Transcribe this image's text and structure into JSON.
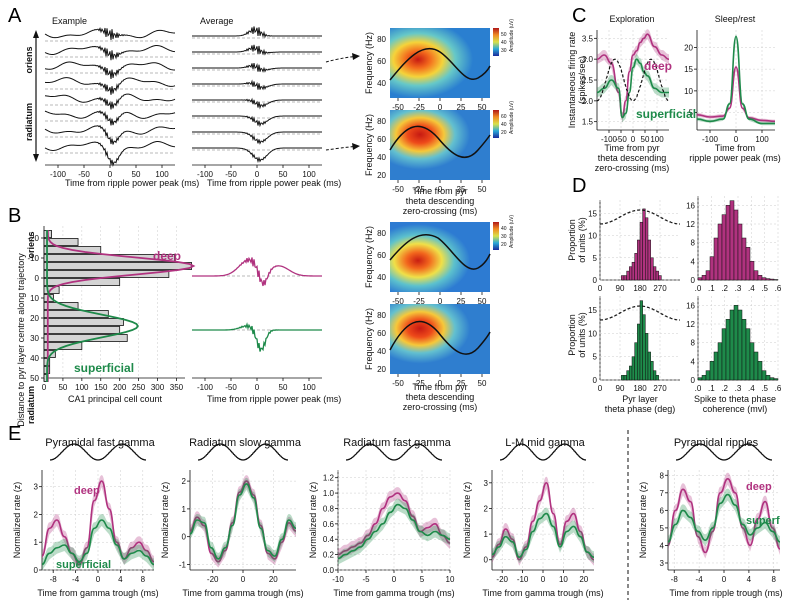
{
  "chart_data": {
    "type": "composite",
    "colors": {
      "deep": "#b0327f",
      "superficial": "#1e8a4a",
      "black": "#111111"
    },
    "panel_letters": [
      "A",
      "B",
      "C",
      "D",
      "E"
    ],
    "A": {
      "example_title": "Example",
      "average_title": "Average",
      "depth_top": "oriens",
      "depth_bottom": "radiatum",
      "xlabel": "Time from ripple power peak (ms)",
      "xticks": [
        "-100",
        "-50",
        "0",
        "50",
        "100"
      ],
      "spectrogram": {
        "ylabel": "Frequency (Hz)",
        "xlabel": [
          "Time from pyr",
          "theta descending",
          "zero-crossing (ms)"
        ],
        "xticks": [
          "-50",
          "-25",
          "0",
          "25",
          "50"
        ],
        "yticks_top": [
          "80",
          "60",
          "40"
        ],
        "yticks_bottom": [
          "80",
          "60",
          "40",
          "20"
        ],
        "colorbar_label": "Amplitude (uV)",
        "colorbar_ticks_top": [
          "30",
          "40",
          "50"
        ],
        "colorbar_ticks_bottom": [
          "20",
          "40",
          "60"
        ]
      }
    },
    "B": {
      "ylabel": "Distance to pyr layer centre along trajectory",
      "depth_top": "oriens",
      "depth_bottom": "radiatum",
      "xlabel": "CA1 principal cell count",
      "xticks": [
        "0",
        "50",
        "100",
        "150",
        "200",
        "250",
        "300",
        "350"
      ],
      "yticks": [
        "-20",
        "-10",
        "0",
        "10",
        "20",
        "30",
        "40",
        "50"
      ],
      "deep_label": "deep",
      "superficial_label": "superficial",
      "histogram": {
        "depths": [
          -22,
          -18,
          -14,
          -10,
          -6,
          -2,
          2,
          6,
          10,
          14,
          18,
          22,
          26,
          30,
          34,
          38,
          42,
          46,
          50
        ],
        "counts": [
          20,
          90,
          150,
          345,
          390,
          330,
          200,
          40,
          25,
          90,
          170,
          210,
          200,
          220,
          100,
          30,
          15,
          15,
          10
        ]
      },
      "average_xlabel": "Time from ripple power peak (ms)",
      "average_xticks": [
        "-100",
        "-50",
        "0",
        "50",
        "100"
      ],
      "spectrogram": {
        "ylabel": "Frequency (Hz)",
        "xlabel": [
          "Time from pyr",
          "theta descending",
          "zero-crossing (ms)"
        ],
        "xticks": [
          "-50",
          "-25",
          "0",
          "25",
          "50"
        ],
        "yticks_top": [
          "80",
          "60",
          "40"
        ],
        "yticks_bottom": [
          "80",
          "60",
          "40",
          "20"
        ],
        "colorbar_label": "Amplitude (uV)",
        "colorbar_ticks": [
          "20",
          "30",
          "40"
        ]
      }
    },
    "C": {
      "exploration_title": "Exploration",
      "sleep_title": "Sleep/rest",
      "ylabel": [
        "Instantaneous firing rate",
        "(spikes/sec)"
      ],
      "exploration_xlabel": [
        "Time from pyr",
        "theta descending",
        "zero-crossing (ms)"
      ],
      "sleep_xlabel": [
        "Time from",
        "ripple power peak (ms)"
      ],
      "exploration_xticks": [
        "-100",
        "-50",
        "0",
        "50",
        "100"
      ],
      "exploration_yticks": [
        "1.5",
        "2.0",
        "2.5",
        "3.0",
        "3.5"
      ],
      "sleep_xticks": [
        "-100",
        "0",
        "100"
      ],
      "sleep_yticks": [
        "5",
        "10",
        "15",
        "20"
      ],
      "deep_label": "deep",
      "superficial_label": "superficial",
      "exploration_series": [
        {
          "name": "deep",
          "x": [
            -150,
            -120,
            -90,
            -60,
            -45,
            -30,
            -15,
            0,
            15,
            30,
            45,
            60,
            90,
            120,
            150
          ],
          "y": [
            3.0,
            3.1,
            2.9,
            2.2,
            1.6,
            2.0,
            2.7,
            3.1,
            3.2,
            3.4,
            3.5,
            3.6,
            3.3,
            3.1,
            3.0
          ]
        },
        {
          "name": "superficial",
          "x": [
            -150,
            -120,
            -90,
            -60,
            -45,
            -30,
            -15,
            0,
            15,
            30,
            45,
            60,
            90,
            120,
            150
          ],
          "y": [
            2.2,
            2.3,
            2.5,
            2.3,
            1.6,
            1.7,
            2.2,
            2.8,
            3.0,
            2.9,
            2.7,
            2.6,
            2.3,
            2.2,
            2.2
          ]
        }
      ],
      "sleep_series": [
        {
          "name": "deep",
          "x": [
            -150,
            -100,
            -50,
            -25,
            0,
            25,
            50,
            100,
            150
          ],
          "y": [
            4.5,
            4.0,
            4.2,
            6.0,
            15.5,
            6.0,
            3.8,
            3.2,
            3.0
          ]
        },
        {
          "name": "superficial",
          "x": [
            -150,
            -100,
            -50,
            -25,
            0,
            25,
            50,
            100,
            150
          ],
          "y": [
            3.5,
            3.0,
            3.5,
            7.0,
            22.5,
            7.0,
            3.5,
            2.5,
            2.5
          ]
        }
      ]
    },
    "D": {
      "ylabel": [
        "Proportion",
        "of units (%)"
      ],
      "phase_xlabel": [
        "Pyr layer",
        "theta phase (deg)"
      ],
      "coherence_xlabel": [
        "Spike to theta phase",
        "coherence (mvl)"
      ],
      "phase_xticks": [
        "0",
        "90",
        "180",
        "270"
      ],
      "phase_yticks": [
        "0",
        "5",
        "10",
        "15"
      ],
      "coherence_xticks": [
        ".0",
        ".1",
        ".2",
        ".3",
        ".4",
        ".5",
        ".6"
      ],
      "coherence_yticks": [
        "0",
        "4",
        "8",
        "12",
        "16"
      ],
      "deep_phase": [
        0,
        0,
        0,
        0,
        0,
        0,
        0,
        0,
        1,
        1,
        2,
        3,
        4,
        6,
        9,
        13,
        16,
        14,
        9,
        5,
        3,
        2,
        1,
        0,
        0,
        0,
        0,
        0,
        0,
        0
      ],
      "superficial_phase": [
        0,
        0,
        0,
        0,
        0,
        0,
        0,
        0,
        1,
        1,
        2,
        3,
        5,
        8,
        12,
        17,
        14,
        10,
        6,
        4,
        2,
        1,
        0,
        0,
        0,
        0,
        0,
        0,
        0,
        0
      ],
      "deep_coherence": [
        0.5,
        1,
        2,
        5,
        9,
        12,
        14,
        16,
        17,
        15,
        12,
        9,
        7,
        4,
        2,
        1,
        0.5,
        0.3,
        0.2,
        0.1
      ],
      "superficial_coherence": [
        0.5,
        1,
        2,
        4,
        6,
        8,
        11,
        13,
        15,
        16,
        15,
        13,
        11,
        8,
        6,
        4,
        2,
        1,
        0.5,
        0.3
      ]
    },
    "E": {
      "ylabel": "Normalized rate (z)",
      "deep_label": "deep",
      "superficial_label": "superficial",
      "superf_label": "superf",
      "panels": [
        {
          "title": "Pyramidal fast gamma",
          "xlabel": "Time from gamma trough (ms)",
          "xticks": [
            "-8",
            "-4",
            "0",
            "4",
            "8"
          ],
          "yticks": [
            "0",
            "1",
            "2",
            "3"
          ],
          "xrange": [
            -10,
            10
          ],
          "yrange": [
            0,
            3.6
          ],
          "series": [
            {
              "name": "deep",
              "y": [
                0.5,
                1.5,
                1.8,
                1.2,
                0.6,
                0.2,
                0.8,
                2.5,
                3.2,
                2.2,
                1.0,
                0.4,
                0.8,
                1.0,
                0.7,
                0.3
              ]
            },
            {
              "name": "superficial",
              "y": [
                0.2,
                0.6,
                0.8,
                0.9,
                0.6,
                0.3,
                0.6,
                1.5,
                1.8,
                1.5,
                0.9,
                0.4,
                0.6,
                0.7,
                0.5,
                0.2
              ]
            }
          ]
        },
        {
          "title": "Radiatum slow gamma",
          "xlabel": "Time from gamma trough (ms)",
          "xticks": [
            "-20",
            "0",
            "20"
          ],
          "yticks": [
            "-1",
            "0",
            "1",
            "2"
          ],
          "xrange": [
            -35,
            35
          ],
          "yrange": [
            -1.2,
            2.4
          ],
          "series": [
            {
              "name": "deep",
              "y": [
                0.2,
                0.7,
                0.4,
                -0.6,
                -0.9,
                -0.5,
                0.5,
                1.6,
                2.0,
                1.5,
                0.4,
                -0.6,
                -0.8,
                -0.2,
                0.5,
                0.2
              ]
            },
            {
              "name": "superficial",
              "y": [
                0.1,
                0.6,
                0.5,
                -0.4,
                -0.8,
                -0.4,
                0.4,
                1.5,
                1.9,
                1.4,
                0.3,
                -0.5,
                -0.7,
                -0.1,
                0.6,
                0.3
              ]
            }
          ]
        },
        {
          "title": "Radiatum fast gamma",
          "xlabel": "Time from gamma trough (ms)",
          "xticks": [
            "-10",
            "-5",
            "0",
            "5",
            "10"
          ],
          "yticks": [
            "0.0",
            "0.2",
            "0.4",
            "0.6",
            "0.8",
            "1.0",
            "1.2"
          ],
          "xrange": [
            -10,
            10
          ],
          "yrange": [
            0,
            1.3
          ],
          "series": [
            {
              "name": "deep",
              "y": [
                0.2,
                0.25,
                0.3,
                0.35,
                0.45,
                0.6,
                0.8,
                0.95,
                1.0,
                0.9,
                0.7,
                0.5,
                0.55,
                0.6,
                0.45,
                0.35
              ]
            },
            {
              "name": "superficial",
              "y": [
                0.15,
                0.2,
                0.25,
                0.3,
                0.4,
                0.5,
                0.6,
                0.75,
                0.85,
                0.8,
                0.65,
                0.5,
                0.45,
                0.5,
                0.45,
                0.4
              ]
            }
          ]
        },
        {
          "title": "L-M mid gamma",
          "xlabel": "Time from gamma trough (ms)",
          "xticks": [
            "-20",
            "-10",
            "0",
            "10",
            "20"
          ],
          "yticks": [
            "0",
            "1",
            "2",
            "3"
          ],
          "xrange": [
            -25,
            25
          ],
          "yrange": [
            -0.4,
            3.5
          ],
          "series": [
            {
              "name": "deep",
              "y": [
                0.1,
                0.6,
                1.2,
                0.8,
                0.0,
                0.5,
                1.5,
                2.3,
                3.0,
                1.8,
                0.6,
                1.5,
                1.8,
                1.1,
                0.3,
                0.0
              ]
            },
            {
              "name": "superficial",
              "y": [
                0.2,
                0.5,
                0.9,
                0.7,
                0.1,
                0.4,
                1.1,
                1.6,
                1.8,
                1.3,
                0.5,
                1.1,
                1.3,
                0.9,
                0.3,
                0.1
              ]
            }
          ]
        },
        {
          "title": "Pyramidal ripples",
          "xlabel": "Time from ripple trough (ms)",
          "xticks": [
            "-8",
            "-4",
            "0",
            "4",
            "8"
          ],
          "yticks": [
            "3",
            "4",
            "5",
            "6",
            "7",
            "8"
          ],
          "xrange": [
            -9,
            9
          ],
          "yrange": [
            2.6,
            8.3
          ],
          "series": [
            {
              "name": "deep",
              "y": [
                4.0,
                6.0,
                7.2,
                6.5,
                4.5,
                3.6,
                4.8,
                7.0,
                7.8,
                7.0,
                5.0,
                4.0,
                5.5,
                6.5,
                5.0,
                3.8
              ]
            },
            {
              "name": "superficial",
              "y": [
                4.2,
                5.2,
                6.0,
                5.6,
                4.8,
                4.3,
                5.0,
                6.4,
                6.9,
                6.3,
                5.2,
                4.6,
                5.0,
                5.3,
                4.8,
                4.2
              ]
            }
          ]
        }
      ]
    }
  }
}
